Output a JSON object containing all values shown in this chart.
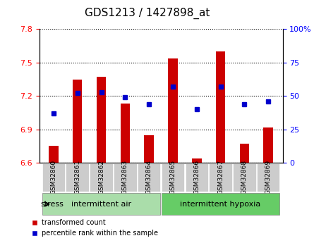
{
  "title": "GDS1213 / 1427898_at",
  "samples": [
    "GSM32860",
    "GSM32861",
    "GSM32862",
    "GSM32863",
    "GSM32864",
    "GSM32865",
    "GSM32866",
    "GSM32867",
    "GSM32868",
    "GSM32869"
  ],
  "transformed_count": [
    6.75,
    7.35,
    7.37,
    7.13,
    6.85,
    7.54,
    6.64,
    7.6,
    6.77,
    6.92
  ],
  "percentile_rank": [
    37,
    52,
    53,
    49,
    44,
    57,
    40,
    57,
    44,
    46
  ],
  "ylim_left": [
    6.6,
    7.8
  ],
  "ylim_right": [
    0,
    100
  ],
  "yticks_left": [
    6.6,
    6.9,
    7.2,
    7.5,
    7.8
  ],
  "yticks_right": [
    0,
    25,
    50,
    75,
    100
  ],
  "bar_color": "#cc0000",
  "dot_color": "#0000cc",
  "group1_label": "intermittent air",
  "group2_label": "intermittent hypoxia",
  "group1_indices": [
    0,
    1,
    2,
    3,
    4
  ],
  "group2_indices": [
    5,
    6,
    7,
    8,
    9
  ],
  "group1_color": "#aaddaa",
  "group2_color": "#66cc66",
  "stress_label": "stress",
  "legend_bar_label": "transformed count",
  "legend_dot_label": "percentile rank within the sample",
  "bar_width": 0.4,
  "baseline": 6.6
}
